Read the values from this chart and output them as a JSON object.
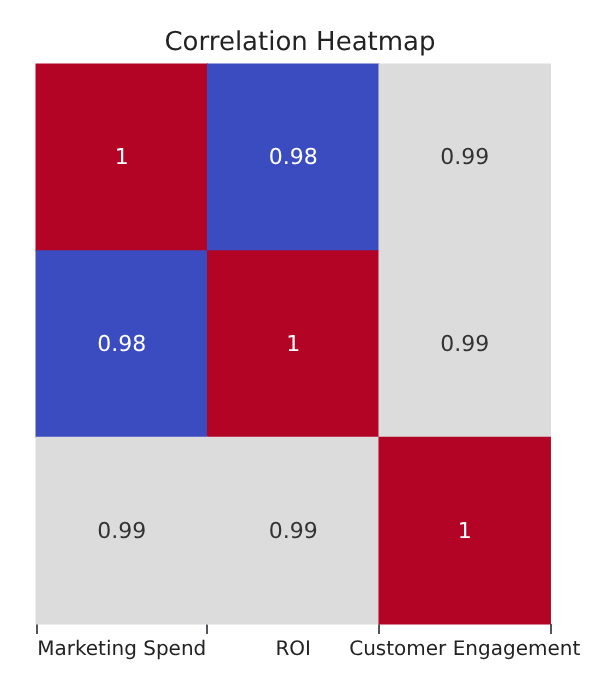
{
  "chart_data": {
    "type": "heatmap",
    "title": "Correlation Heatmap",
    "categories": [
      "Marketing Spend",
      "ROI",
      "Customer Engagement"
    ],
    "y_categories": [
      null,
      null,
      null
    ],
    "cells": [
      [
        1,
        0.98,
        0.99
      ],
      [
        0.98,
        1,
        0.99
      ],
      [
        0.99,
        0.99,
        1
      ]
    ],
    "data_labels": true,
    "tick_labels": "x"
  }
}
